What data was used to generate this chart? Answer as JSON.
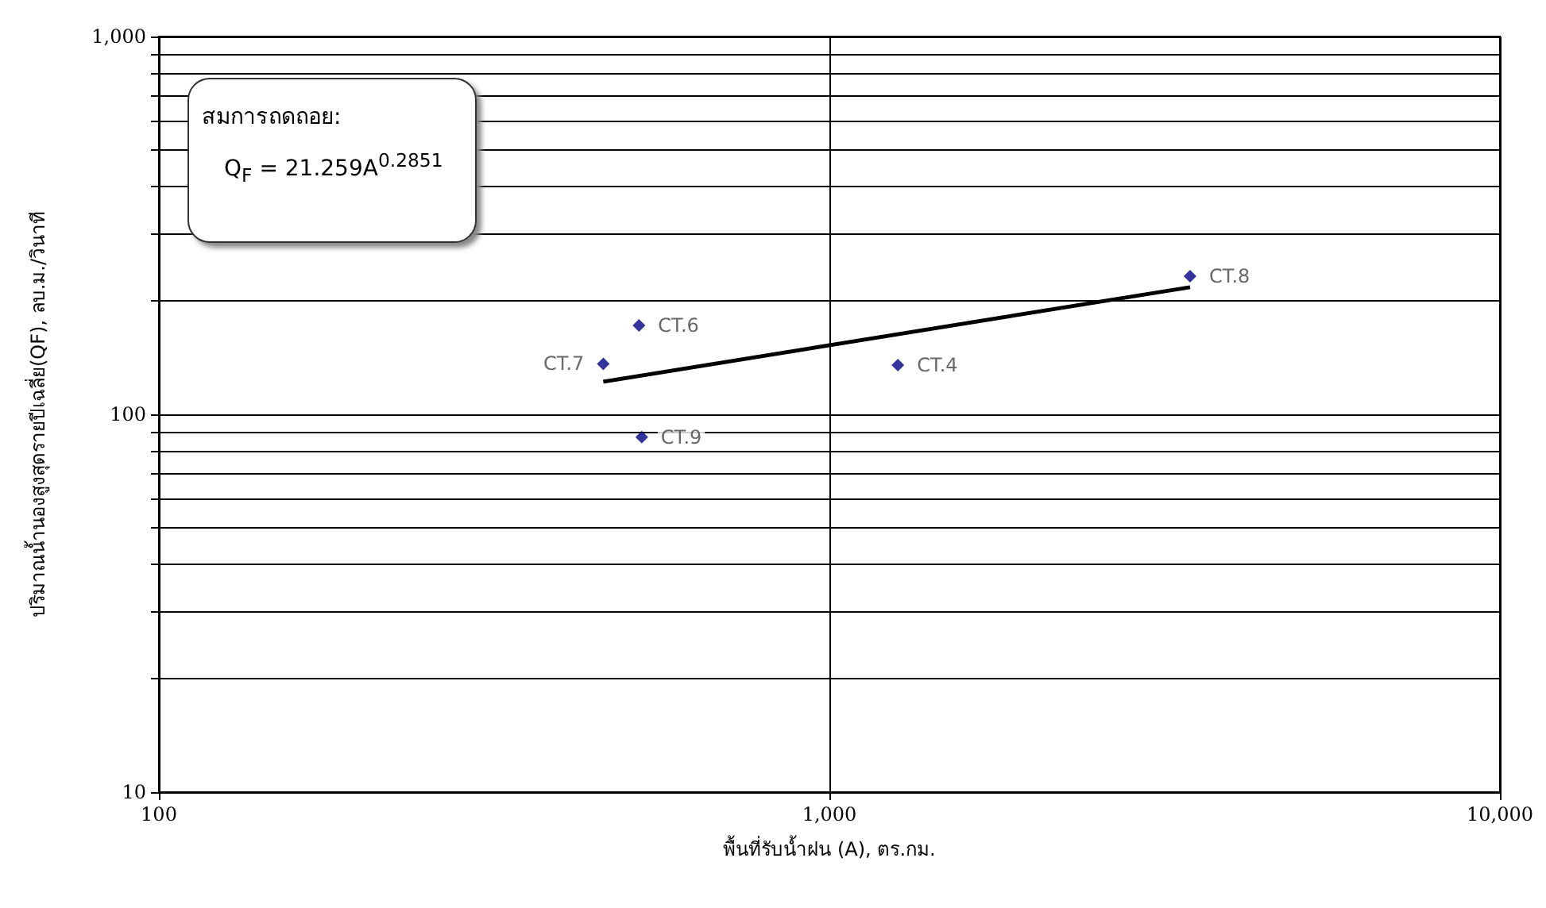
{
  "chart_data": {
    "type": "scatter",
    "xlabel": "พื้นที่รับน้ำฝน (A), ตร.กม.",
    "ylabel": "ปริมาณน้ำนองสูงสุดรายปีเฉลี่ย(QF), ลบ.ม./วินาที",
    "log": "xy",
    "grid": true,
    "marker": "diamond",
    "xlim": [
      100,
      10000
    ],
    "xticks": [
      100,
      {
        "value": 1000,
        "label": "1,000"
      },
      {
        "value": 10000,
        "label": "10,000"
      }
    ],
    "ylim": [
      10,
      1000
    ],
    "yticks": [
      10,
      {
        "value": 20,
        "label": null
      },
      {
        "value": 30,
        "label": null
      },
      {
        "value": 40,
        "label": null
      },
      {
        "value": 50,
        "label": null
      },
      {
        "value": 60,
        "label": null
      },
      {
        "value": 70,
        "label": null
      },
      {
        "value": 80,
        "label": null
      },
      {
        "value": 90,
        "label": null
      },
      100,
      {
        "value": 200,
        "label": null
      },
      {
        "value": 300,
        "label": null
      },
      {
        "value": 400,
        "label": null
      },
      {
        "value": 500,
        "label": null
      },
      {
        "value": 600,
        "label": null
      },
      {
        "value": 700,
        "label": null
      },
      {
        "value": 800,
        "label": null
      },
      {
        "value": 900,
        "label": null
      },
      {
        "value": 1000,
        "label": "1,000"
      }
    ],
    "series": [
      {
        "color": "#000080",
        "x": [
          520,
          460,
          525,
          1265,
          3450
        ],
        "values": [
          172,
          136,
          87,
          135,
          232
        ],
        "value_labels": [
          "CT.6",
          "CT.7",
          "CT.9",
          "CT.4",
          "CT.8"
        ]
      },
      {
        "type": "line",
        "color": "#000000",
        "marker": "none",
        "x": [
          460,
          3450
        ],
        "values": [
          122,
          217
        ]
      }
    ],
    "annotations": [
      "สมการถดถอย:",
      "Q$_{F}$ = 21.259A$^{0.2851}$"
    ]
  }
}
